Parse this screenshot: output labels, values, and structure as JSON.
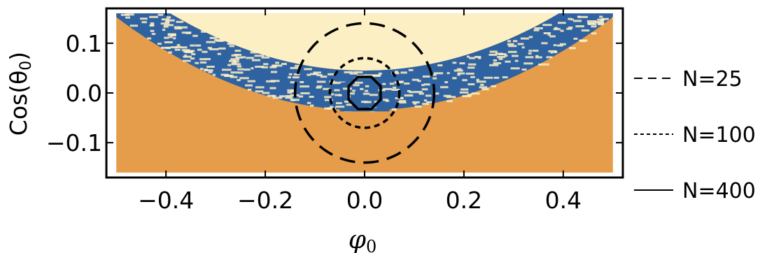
{
  "chart_data": {
    "type": "heatmap",
    "title": "",
    "xlabel": "φ",
    "xlabel_sub": "0",
    "ylabel_prefix": "Cos(θ",
    "ylabel_sub": "0",
    "ylabel_suffix": ")",
    "xlim": [
      -0.52,
      0.52
    ],
    "ylim": [
      -0.17,
      0.17
    ],
    "data_extent": {
      "x": [
        -0.5,
        0.5
      ],
      "y": [
        -0.16,
        0.16
      ]
    },
    "x_ticks": [
      {
        "value": -0.4,
        "label": "−0.4"
      },
      {
        "value": -0.2,
        "label": "−0.2"
      },
      {
        "value": 0.0,
        "label": "0.0"
      },
      {
        "value": 0.2,
        "label": "0.2"
      },
      {
        "value": 0.4,
        "label": "0.4"
      }
    ],
    "y_ticks": [
      {
        "value": 0.1,
        "label": "0.1"
      },
      {
        "value": 0.0,
        "label": "0.0"
      },
      {
        "value": -0.1,
        "label": "−0.1"
      }
    ],
    "regions": {
      "upper_color": "#fdefc4",
      "lower_color": "#e59c4b",
      "band_color": "#2f62a0",
      "boundary_parabola": {
        "curvature": 0.75,
        "offset": 0.01,
        "band_width": 0.035,
        "outer_band_width": 0.055
      }
    },
    "series": [
      {
        "name": "N=25",
        "style": "dashed",
        "shape": "circle",
        "center": [
          0.0,
          0.0
        ],
        "radius_x": 0.14,
        "radius_y": 0.14
      },
      {
        "name": "N=100",
        "style": "dotted",
        "shape": "circle",
        "center": [
          0.0,
          0.0
        ],
        "radius_x": 0.07,
        "radius_y": 0.07
      },
      {
        "name": "N=400",
        "style": "solid",
        "shape": "octagon",
        "center": [
          0.0,
          0.0
        ],
        "radius_x": 0.035,
        "radius_y": 0.035
      }
    ],
    "legend_position": "right",
    "grid": false
  }
}
